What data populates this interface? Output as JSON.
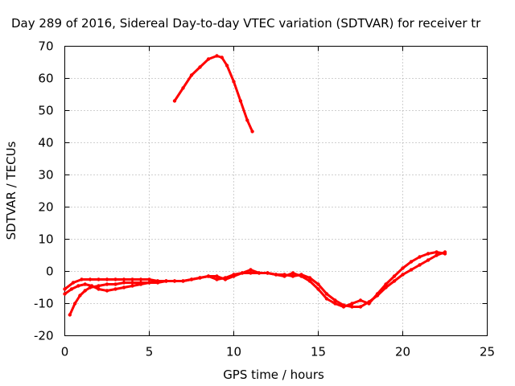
{
  "chart_data": {
    "type": "line",
    "title": "Day 289 of 2016, Sidereal Day-to-day VTEC variation (SDTVAR) for receiver tr",
    "xlabel": "GPS time / hours",
    "ylabel": "SDTVAR / TECUs",
    "xlim": [
      0,
      25
    ],
    "ylim": [
      -20,
      70
    ],
    "xticks": [
      0,
      5,
      10,
      15,
      20,
      25
    ],
    "yticks": [
      -20,
      -10,
      0,
      10,
      20,
      30,
      40,
      50,
      60,
      70
    ],
    "grid": true,
    "legend": "none",
    "series_color": "#ff0000",
    "series": [
      {
        "x": [
          6.5,
          7.0,
          7.5,
          8.0,
          8.5,
          9.0,
          9.3,
          9.6,
          10.0,
          10.4,
          10.8,
          11.1
        ],
        "y": [
          53,
          57,
          61,
          63.5,
          66,
          67,
          66.5,
          64,
          59,
          53,
          47,
          43.5
        ]
      },
      {
        "x": [
          0.0,
          0.5,
          1.0,
          1.5,
          2.0,
          2.5,
          3.0,
          3.5,
          4.0,
          4.5,
          5.0,
          5.5,
          6.0,
          6.5,
          7.0,
          7.5,
          8.0,
          8.5,
          9.0,
          9.5,
          10.0,
          10.5,
          11.0,
          11.5,
          12.0,
          12.5,
          13.0,
          13.5,
          14.0,
          14.5,
          15.0,
          15.5,
          16.0,
          16.5,
          17.0,
          17.5,
          18.0,
          18.5,
          19.0,
          19.5,
          20.0,
          20.5,
          21.0,
          21.5,
          22.0,
          22.5
        ],
        "y": [
          -5.5,
          -3.5,
          -2.5,
          -2.5,
          -2.5,
          -2.5,
          -2.5,
          -2.5,
          -2.5,
          -2.5,
          -2.5,
          -3,
          -3,
          -3,
          -3,
          -2.5,
          -2,
          -1.5,
          -1.5,
          -2.5,
          -1.5,
          -0.5,
          -0.5,
          -0.5,
          -0.5,
          -1,
          -1,
          -1.5,
          -1,
          -2,
          -4,
          -7,
          -9,
          -10.5,
          -11,
          -11,
          -9.5,
          -7.5,
          -5,
          -3,
          -1,
          0.5,
          2,
          3.5,
          5,
          6
        ]
      },
      {
        "x": [
          0.3,
          0.6,
          0.9,
          1.2,
          1.5,
          2.0,
          2.5,
          3.0,
          3.5,
          4.0,
          4.5,
          5.0,
          5.5,
          6.0,
          6.5,
          7.0,
          7.5,
          8.0,
          8.5,
          9.0,
          9.5,
          10.0,
          10.5,
          11.0,
          11.5,
          12.0,
          12.5,
          13.0,
          13.5,
          14.0,
          14.5,
          15.0,
          15.5,
          16.0,
          16.5,
          17.0,
          17.5,
          18.0,
          18.5,
          19.0,
          19.5,
          20.0,
          20.5,
          21.0,
          21.5,
          22.0,
          22.5
        ],
        "y": [
          -13.5,
          -10,
          -7.5,
          -6,
          -5,
          -4.5,
          -4,
          -4,
          -3.5,
          -3.5,
          -3.5,
          -3.5,
          -3,
          -3,
          -3,
          -3,
          -2.5,
          -2,
          -1.5,
          -2.5,
          -2,
          -1,
          -0.5,
          0.5,
          -0.5,
          -0.5,
          -1,
          -1.5,
          -0.5,
          -1.5,
          -3,
          -5.5,
          -8.5,
          -10,
          -11,
          -10,
          -9,
          -10,
          -7,
          -4,
          -1.5,
          1,
          3,
          4.5,
          5.5,
          6,
          5.5
        ]
      },
      {
        "x": [
          0.0,
          0.4,
          0.8,
          1.2,
          1.6,
          2.0,
          2.5,
          3.0,
          3.5,
          4.0,
          4.5,
          5.0,
          5.5,
          6.0
        ],
        "y": [
          -7,
          -5.5,
          -4.5,
          -4,
          -4.5,
          -5.5,
          -6,
          -5.5,
          -5,
          -4.5,
          -4,
          -3.5,
          -3.5,
          -3
        ]
      }
    ]
  }
}
